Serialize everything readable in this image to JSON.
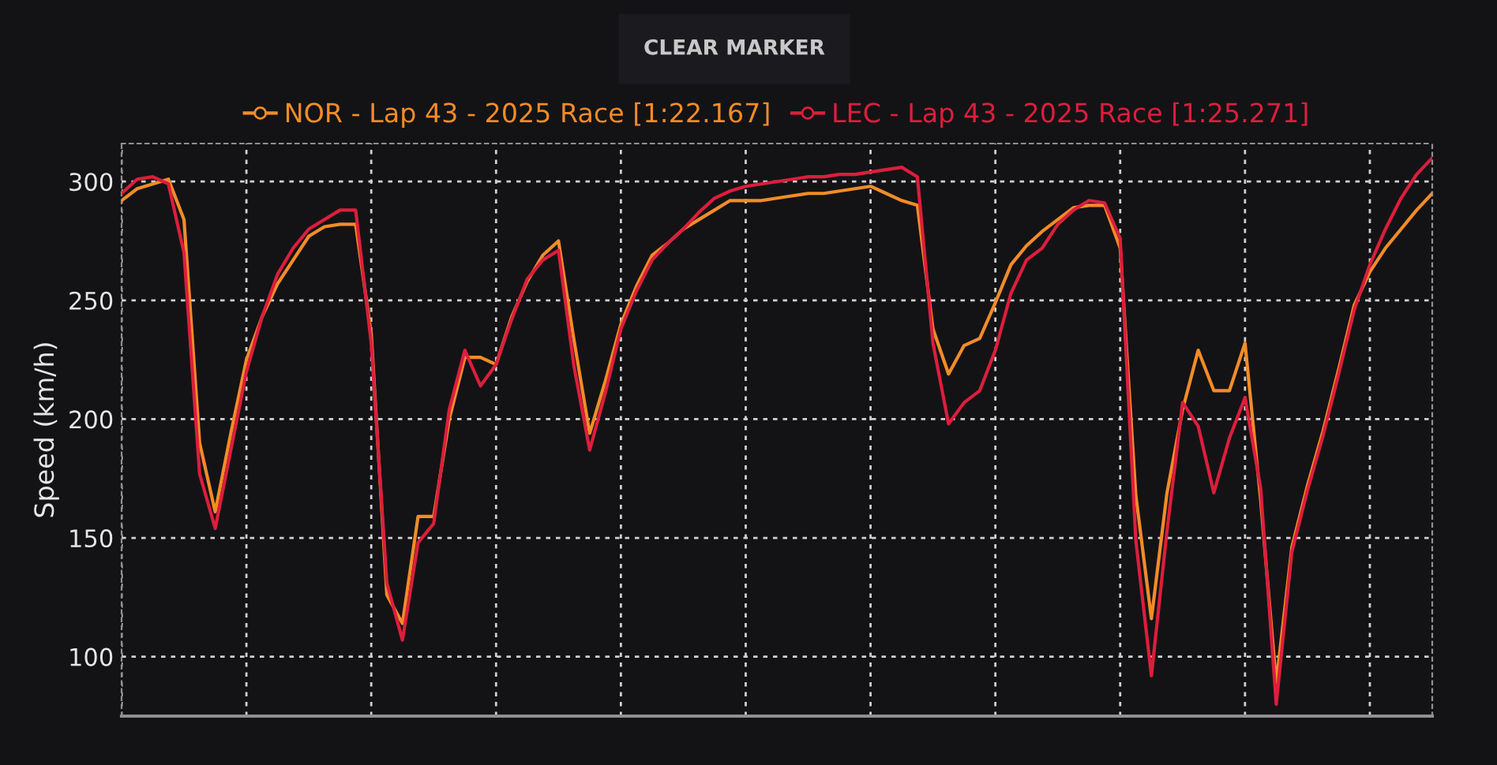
{
  "chart_data": {
    "type": "line",
    "ylabel": "Speed (km/h)",
    "annotations": [
      "CLEAR MARKER"
    ],
    "categories": [
      null,
      null,
      null,
      null,
      null,
      null,
      null,
      null,
      null,
      null,
      null,
      null,
      null,
      null,
      null,
      null,
      null,
      null,
      null,
      null,
      null,
      null,
      null,
      null,
      null,
      null,
      null,
      null,
      null,
      null,
      null,
      null,
      null,
      null,
      null,
      null,
      null,
      null,
      null,
      null,
      null,
      null,
      null,
      null,
      null,
      null,
      null,
      null,
      null,
      null,
      null,
      null,
      null,
      null,
      null,
      null,
      null,
      null,
      null,
      null,
      null,
      null,
      null,
      null,
      null,
      null,
      null,
      null,
      null,
      null,
      null,
      null,
      null,
      null,
      null,
      null,
      null,
      null,
      null,
      null,
      null,
      null,
      null,
      null,
      null
    ],
    "ylim": [
      75,
      316
    ],
    "yticks": [
      100,
      150,
      200,
      250,
      300
    ],
    "tick_labels": "y",
    "grid": true,
    "legend": "top",
    "line_style": "solid",
    "series": [
      {
        "name": "NOR - Lap 43 - 2025 Race [1:22.167]",
        "color": "#f28c28",
        "values": [
          292,
          297,
          299,
          301,
          284,
          190,
          161,
          194,
          225,
          243,
          257,
          267,
          277,
          281,
          282,
          282,
          236,
          126,
          114,
          159,
          159,
          200,
          226,
          226,
          223,
          243,
          258,
          269,
          275,
          233,
          194,
          216,
          240,
          256,
          269,
          274,
          280,
          284,
          288,
          292,
          292,
          292,
          293,
          294,
          295,
          295,
          296,
          297,
          298,
          295,
          292,
          290,
          238,
          219,
          231,
          234,
          249,
          265,
          273,
          279,
          284,
          289,
          290,
          290,
          272,
          168,
          116,
          169,
          204,
          229,
          212,
          212,
          232,
          166,
          89,
          146,
          172,
          195,
          221,
          248,
          262,
          272,
          280,
          288,
          295
        ]
      },
      {
        "name": "LEC - Lap 43 - 2025 Race [1:25.271]",
        "color": "#dc1e3c",
        "values": [
          295,
          301,
          302,
          299,
          270,
          177,
          154,
          187,
          220,
          243,
          261,
          272,
          280,
          284,
          288,
          288,
          232,
          131,
          107,
          148,
          156,
          204,
          229,
          214,
          223,
          242,
          259,
          267,
          271,
          222,
          187,
          211,
          238,
          254,
          267,
          274,
          280,
          287,
          293,
          296,
          298,
          299,
          300,
          301,
          302,
          302,
          303,
          303,
          304,
          305,
          306,
          302,
          232,
          198,
          207,
          212,
          229,
          253,
          267,
          272,
          282,
          288,
          292,
          291,
          276,
          149,
          92,
          153,
          207,
          197,
          169,
          192,
          209,
          171,
          80,
          144,
          170,
          193,
          219,
          246,
          265,
          280,
          293,
          303,
          310
        ]
      }
    ]
  }
}
